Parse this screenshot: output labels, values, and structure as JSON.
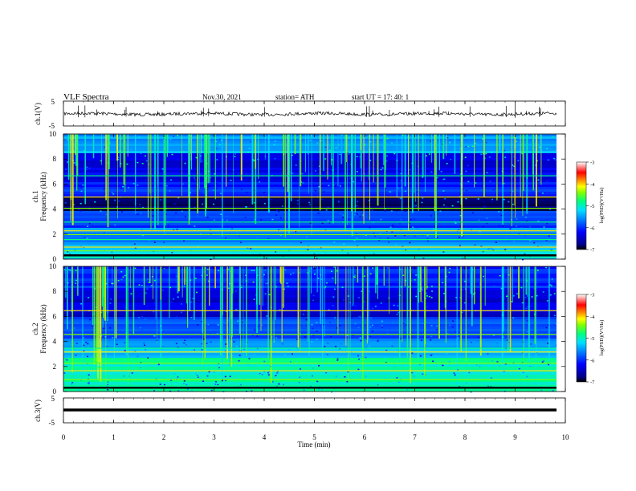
{
  "header": {
    "title": "VLF  Spectra",
    "date": "Nov.30, 2021",
    "station": "station= ATH",
    "start": "start  UT  =    17: 40: 1"
  },
  "chart_data": [
    {
      "type": "line",
      "id": "ch1",
      "ylabel": "ch.1(V)",
      "ylim": [
        -5,
        5
      ],
      "yticks": [
        "5",
        "-5"
      ],
      "color": "#000000"
    },
    {
      "type": "heatmap",
      "id": "ch1_spectrogram",
      "ylabel": "ch.1\nFrequency (kHz)",
      "ylabel_top": "ch.1",
      "ylabel_bottom": "Frequency  (kHz)",
      "ylim": [
        0,
        10
      ],
      "yticks": [
        "0",
        "2",
        "4",
        "6",
        "8",
        "10"
      ],
      "colorbar": {
        "label": "log(PSD)(V²/Hz)",
        "range": [
          -7,
          -3
        ],
        "ticks": [
          "-3",
          "-4",
          "-5",
          "-6",
          "-7"
        ]
      }
    },
    {
      "type": "heatmap",
      "id": "ch2_spectrogram",
      "ylabel_top": "ch.2",
      "ylabel_bottom": "Frequency  (kHz)",
      "ylim": [
        0,
        10
      ],
      "yticks": [
        "0",
        "2",
        "4",
        "6",
        "8",
        "10"
      ],
      "colorbar": {
        "label": "log(PSD)(V²/Hz)",
        "range": [
          -7,
          -3
        ],
        "ticks": [
          "-3",
          "-4",
          "-5",
          "-6",
          "-7"
        ]
      }
    },
    {
      "type": "line",
      "id": "ch3",
      "ylabel": "ch.3(V)",
      "ylim": [
        -5,
        5
      ],
      "yticks": [
        "5",
        "-5"
      ],
      "color": "#000000"
    }
  ],
  "xaxis": {
    "label": "Time  (min)",
    "range": [
      0,
      10
    ],
    "ticks": [
      "0",
      "1",
      "2",
      "3",
      "4",
      "5",
      "6",
      "7",
      "8",
      "9",
      "10"
    ]
  },
  "colors": {
    "low": "#00008b",
    "mid": "#00d0ff",
    "high": "#ff0000"
  }
}
